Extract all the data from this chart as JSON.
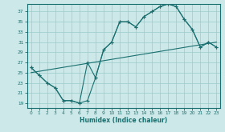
{
  "xlabel": "Humidex (Indice chaleur)",
  "bg_color": "#cce8e8",
  "grid_color": "#99cccc",
  "line_color": "#1a7070",
  "xlim": [
    -0.5,
    23.5
  ],
  "ylim": [
    18,
    38.5
  ],
  "xticks": [
    0,
    1,
    2,
    3,
    4,
    5,
    6,
    7,
    8,
    9,
    10,
    11,
    12,
    13,
    14,
    15,
    16,
    17,
    18,
    19,
    20,
    21,
    22,
    23
  ],
  "yticks": [
    19,
    21,
    23,
    25,
    27,
    29,
    31,
    33,
    35,
    37
  ],
  "curve1_x": [
    0,
    1,
    2,
    3,
    4,
    5,
    6,
    7,
    8,
    9,
    10,
    11,
    12,
    13,
    14,
    15,
    16,
    17,
    18,
    19,
    20,
    21,
    22,
    23
  ],
  "curve1_y": [
    26,
    24.5,
    23,
    22,
    19.5,
    19.5,
    19,
    27,
    24,
    29.5,
    31,
    35,
    35,
    34,
    36,
    37,
    38,
    38.5,
    38,
    35.5,
    33.5,
    30,
    31,
    30
  ],
  "curve2_x": [
    0,
    1,
    2,
    3,
    4,
    5,
    6,
    7,
    8,
    9,
    10,
    11,
    12,
    13,
    14,
    15,
    16,
    17,
    18,
    19,
    20,
    21,
    22,
    23
  ],
  "curve2_y": [
    26,
    24.5,
    23,
    22,
    19.5,
    19.5,
    19,
    19.5,
    24,
    29.5,
    31,
    35,
    35,
    34,
    36,
    37,
    38,
    38.5,
    38,
    35.5,
    33.5,
    30,
    31,
    30
  ],
  "trend_x": [
    0,
    23
  ],
  "trend_y": [
    25,
    31
  ]
}
